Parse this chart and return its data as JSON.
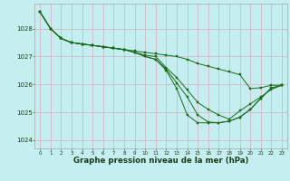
{
  "title": "Graphe pression niveau de la mer (hPa)",
  "bg_color": "#c5eef0",
  "grid_color": "#d4b8c4",
  "line_color": "#1a6b1a",
  "marker": "s",
  "markersize": 1.5,
  "linewidth": 0.7,
  "xlim": [
    -0.5,
    23.5
  ],
  "ylim": [
    1023.7,
    1028.9
  ],
  "yticks": [
    1024,
    1025,
    1026,
    1027,
    1028
  ],
  "xticks": [
    0,
    1,
    2,
    3,
    4,
    5,
    6,
    7,
    8,
    9,
    10,
    11,
    12,
    13,
    14,
    15,
    16,
    17,
    18,
    19,
    20,
    21,
    22,
    23
  ],
  "series": [
    [
      1028.6,
      1028.0,
      1027.65,
      1027.5,
      1027.45,
      1027.4,
      1027.35,
      1027.3,
      1027.25,
      1027.2,
      1027.15,
      1027.1,
      1027.05,
      1027.0,
      1026.9,
      1026.75,
      1026.65,
      1026.55,
      1026.45,
      1026.35,
      1025.85,
      1025.88,
      1025.97,
      1025.97
    ],
    [
      1028.6,
      1028.0,
      1027.65,
      1027.5,
      1027.45,
      1027.4,
      1027.35,
      1027.3,
      1027.25,
      1027.15,
      1027.05,
      1027.0,
      1026.6,
      1026.25,
      1025.8,
      1025.35,
      1025.1,
      1024.9,
      1024.75,
      1025.05,
      1025.3,
      1025.55,
      1025.82,
      1025.97
    ],
    [
      1028.6,
      1028.0,
      1027.65,
      1027.5,
      1027.45,
      1027.4,
      1027.35,
      1027.3,
      1027.25,
      1027.15,
      1027.0,
      1026.9,
      1026.55,
      1026.05,
      1025.55,
      1024.9,
      1024.65,
      1024.62,
      1024.68,
      1024.82,
      1025.1,
      1025.5,
      1025.87,
      1025.97
    ],
    [
      1028.6,
      1028.0,
      1027.65,
      1027.5,
      1027.45,
      1027.4,
      1027.35,
      1027.3,
      1027.25,
      1027.15,
      1027.0,
      1026.9,
      1026.5,
      1025.85,
      1024.9,
      1024.62,
      1024.62,
      1024.62,
      1024.68,
      1024.82,
      1025.1,
      1025.5,
      1025.87,
      1025.97
    ]
  ],
  "xlabel_fontsize": 6.2,
  "ylabel_fontsize": 5.5,
  "xtick_fontsize": 4.0,
  "ytick_fontsize": 5.0
}
